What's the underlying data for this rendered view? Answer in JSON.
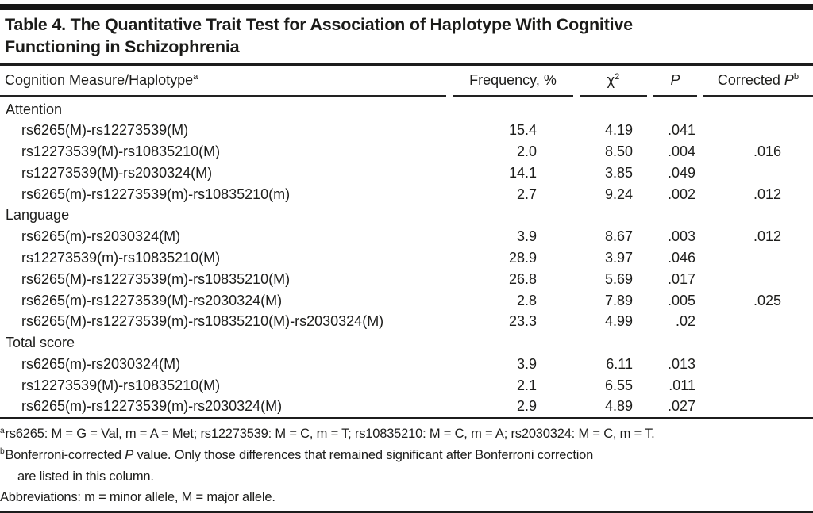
{
  "table": {
    "title_line1": "Table 4. The Quantitative Trait Test for Association of Haplotype With Cognitive",
    "title_line2": "Functioning in Schizophrenia",
    "columns": [
      {
        "label": "Cognition Measure/Haplotype",
        "sup": "a"
      },
      {
        "label": "Frequency, %"
      },
      {
        "label": "χ",
        "sup": "2"
      },
      {
        "label": "P"
      },
      {
        "prefix": "Corrected ",
        "italic": "P",
        "sup": "b"
      }
    ],
    "sections": [
      {
        "label": "Attention",
        "rows": [
          {
            "haplotype": "rs6265(M)-rs12273539(M)",
            "frequency": "15.4",
            "chi2": "4.19",
            "p": ".041",
            "corrected_p": ""
          },
          {
            "haplotype": "rs12273539(M)-rs10835210(M)",
            "frequency": "2.0",
            "chi2": "8.50",
            "p": ".004",
            "corrected_p": ".016"
          },
          {
            "haplotype": "rs12273539(M)-rs2030324(M)",
            "frequency": "14.1",
            "chi2": "3.85",
            "p": ".049",
            "corrected_p": ""
          },
          {
            "haplotype": "rs6265(m)-rs12273539(m)-rs10835210(m)",
            "frequency": "2.7",
            "chi2": "9.24",
            "p": ".002",
            "corrected_p": ".012"
          }
        ]
      },
      {
        "label": "Language",
        "rows": [
          {
            "haplotype": "rs6265(m)-rs2030324(M)",
            "frequency": "3.9",
            "chi2": "8.67",
            "p": ".003",
            "corrected_p": ".012"
          },
          {
            "haplotype": "rs12273539(m)-rs10835210(M)",
            "frequency": "28.9",
            "chi2": "3.97",
            "p": ".046",
            "corrected_p": ""
          },
          {
            "haplotype": "rs6265(M)-rs12273539(m)-rs10835210(M)",
            "frequency": "26.8",
            "chi2": "5.69",
            "p": ".017",
            "corrected_p": ""
          },
          {
            "haplotype": "rs6265(m)-rs12273539(M)-rs2030324(M)",
            "frequency": "2.8",
            "chi2": "7.89",
            "p": ".005",
            "corrected_p": ".025"
          },
          {
            "haplotype": "rs6265(M)-rs12273539(m)-rs10835210(M)-rs2030324(M)",
            "frequency": "23.3",
            "chi2": "4.99",
            "p": ".02",
            "corrected_p": ""
          }
        ]
      },
      {
        "label": "Total score",
        "rows": [
          {
            "haplotype": "rs6265(m)-rs2030324(M)",
            "frequency": "3.9",
            "chi2": "6.11",
            "p": ".013",
            "corrected_p": ""
          },
          {
            "haplotype": "rs12273539(M)-rs10835210(M)",
            "frequency": "2.1",
            "chi2": "6.55",
            "p": ".011",
            "corrected_p": ""
          },
          {
            "haplotype": "rs6265(m)-rs12273539(m)-rs2030324(M)",
            "frequency": "2.9",
            "chi2": "4.89",
            "p": ".027",
            "corrected_p": ""
          }
        ]
      }
    ]
  },
  "footnotes": {
    "a": {
      "sup": "a",
      "text": "rs6265: M = G = Val, m = A = Met; rs12273539: M = C, m = T; rs10835210: M = C, m = A; rs2030324: M = C, m = T."
    },
    "b": {
      "sup": "b",
      "prefix": "Bonferroni-corrected ",
      "italic": "P",
      "line1_rest": " value. Only those differences that remained significant after Bonferroni correction",
      "line2": "are listed in this column."
    },
    "abbreviations": "Abbreviations: m = minor allele, M = major allele."
  }
}
